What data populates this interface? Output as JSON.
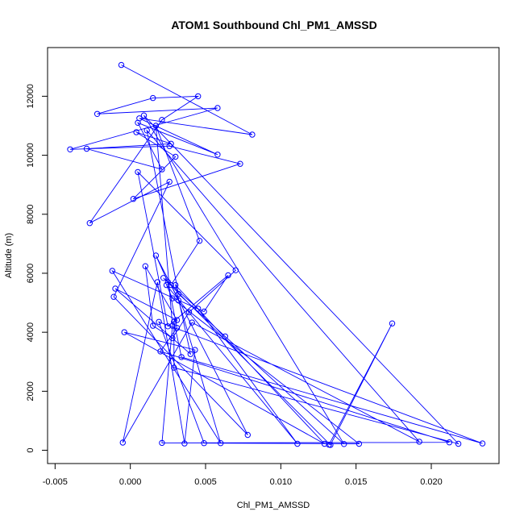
{
  "chart_data": {
    "type": "line",
    "title": "ATOM1 Southbound Chl_PM1_AMSSD",
    "xlabel": "Chl_PM1_AMSSD",
    "ylabel": "Altitude (m)",
    "xlim": [
      -0.0055,
      0.0245
    ],
    "ylim": [
      -450,
      13650
    ],
    "x_ticks": [
      -0.005,
      0.0,
      0.005,
      0.01,
      0.015,
      0.02
    ],
    "x_tick_labels": [
      "-0.005",
      "0.000",
      "0.005",
      "0.010",
      "0.015",
      "0.020"
    ],
    "y_ticks": [
      0,
      2000,
      4000,
      6000,
      8000,
      10000,
      12000
    ],
    "y_tick_labels": [
      "0",
      "2000",
      "4000",
      "6000",
      "8000",
      "10000",
      "12000"
    ],
    "grid": false,
    "legend": "none",
    "series": [
      {
        "color": "#0000ff",
        "marker": "open-circle",
        "x": [
          -0.0006,
          0.0081,
          0.0006,
          0.0058,
          0.0005,
          0.0021,
          -0.0029,
          0.0027,
          0.0004,
          0.003,
          0.0002,
          0.0073,
          0.0026,
          -0.004,
          0.0058,
          -0.0022,
          0.0015,
          0.0045,
          0.0021,
          -0.0027,
          0.0026,
          -0.0011,
          0.0078,
          0.0017,
          0.0025,
          0.0031,
          0.002,
          0.0212,
          0.0021,
          0.0028,
          0.0017,
          0.0046,
          0.0027,
          0.0032,
          0.006,
          -0.0012,
          0.0049,
          0.0065,
          0.0025,
          0.0005,
          0.007,
          0.0039,
          0.0028,
          0.0015,
          0.001,
          0.0031,
          -0.001,
          0.004,
          0.003,
          0.0129,
          -0.0004,
          0.0043,
          0.0036,
          0.0018,
          -0.0005,
          0.0041,
          0.0192,
          0.0011,
          0.0032,
          0.0063,
          0.0142,
          0.0009,
          0.0218,
          0.0029,
          0.0029,
          0.0034,
          0.0234,
          0.0019,
          0.0049,
          0.0152,
          0.0028,
          0.0024,
          0.0111,
          0.0045,
          0.0022,
          0.0133,
          0.0174,
          0.0132
        ],
        "y": [
          13060,
          10700,
          11250,
          10020,
          11100,
          9520,
          10220,
          10390,
          10780,
          9950,
          8520,
          9710,
          10310,
          10200,
          11600,
          11400,
          11940,
          12000,
          11200,
          7700,
          9100,
          5200,
          520,
          6600,
          5700,
          4150,
          3350,
          270,
          250,
          4220,
          11000,
          7100,
          5600,
          5080,
          240,
          6080,
          4700,
          5930,
          4200,
          9430,
          6100,
          4680,
          3800,
          4220,
          6240,
          4410,
          5480,
          3260,
          5600,
          220,
          4000,
          3400,
          230,
          5700,
          260,
          4330,
          290,
          10840,
          5300,
          3860,
          210,
          11350,
          220,
          2800,
          4350,
          3160,
          230,
          4350,
          240,
          220,
          5150,
          5600,
          220,
          4800,
          5840,
          180,
          4300,
          190
        ]
      }
    ]
  }
}
